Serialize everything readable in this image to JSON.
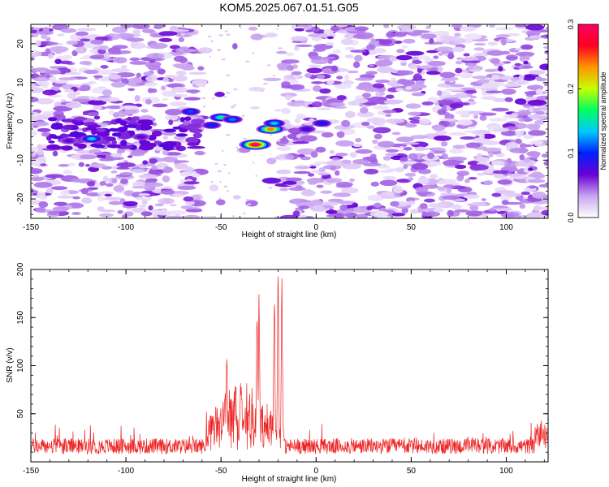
{
  "title": "KOM5.2025.067.01.51.G05",
  "chart_data": [
    {
      "type": "heatmap",
      "xlabel": "Height of straight line (km)",
      "ylabel": "Frequency (Hz)",
      "xlim": [
        -150,
        122
      ],
      "ylim": [
        -25,
        25
      ],
      "x_ticks": [
        -150,
        -100,
        -50,
        0,
        50,
        100
      ],
      "x_tick_labels": [
        "-150",
        "-100",
        "-50",
        "0",
        "50",
        "100"
      ],
      "y_ticks": [
        20,
        10,
        0,
        -10,
        -20
      ],
      "y_tick_labels": [
        "20",
        "10",
        "0",
        "-10",
        "-20"
      ],
      "colorbar": {
        "label": "Normalized spectral amplitude",
        "range": [
          0.0,
          0.3
        ],
        "ticks": [
          0.0,
          0.1,
          0.2,
          0.3
        ],
        "tick_labels": [
          "0.0",
          "0.1",
          "0.2",
          "0.3"
        ],
        "colormap": [
          "#ffffff",
          "#c9a4f0",
          "#6a00d4",
          "#0020ff",
          "#00c8ff",
          "#00ff60",
          "#c8ff00",
          "#ff9600",
          "#ff0020",
          "#ff0060"
        ]
      },
      "gap_x_range": [
        -60,
        -18
      ],
      "hotspots": [
        {
          "x": -118,
          "y": -4.5,
          "value": 0.14
        },
        {
          "x": -66,
          "y": 2.5,
          "value": 0.11
        },
        {
          "x": -50,
          "y": 1.0,
          "value": 0.16
        },
        {
          "x": -55,
          "y": -1.0,
          "value": 0.1
        },
        {
          "x": -44,
          "y": 0.5,
          "value": 0.12
        },
        {
          "x": -32,
          "y": -6.0,
          "value": 0.3
        },
        {
          "x": -24,
          "y": -2.0,
          "value": 0.24
        },
        {
          "x": -22,
          "y": -0.5,
          "value": 0.14
        },
        {
          "x": 3,
          "y": -0.5,
          "value": 0.1
        },
        {
          "x": -5,
          "y": -2.0,
          "value": 0.08
        },
        {
          "x": -130,
          "y": -5.0,
          "value": 0.07
        },
        {
          "x": -92,
          "y": -4.0,
          "value": 0.07
        }
      ]
    },
    {
      "type": "line",
      "xlabel": "Height of straight line (km)",
      "ylabel": "SNR (v/v)",
      "xlim": [
        -150,
        122
      ],
      "ylim": [
        0,
        200
      ],
      "x_ticks": [
        -150,
        -100,
        -50,
        0,
        50,
        100
      ],
      "x_tick_labels": [
        "-150",
        "-100",
        "-50",
        "0",
        "50",
        "100"
      ],
      "y_ticks": [
        50,
        100,
        150,
        200
      ],
      "y_tick_labels": [
        "50",
        "100",
        "150",
        "200"
      ],
      "color": "#ee2222",
      "baseline_snr": 18,
      "peaks": [
        {
          "x": -47,
          "y": 130
        },
        {
          "x": -48,
          "y": 78
        },
        {
          "x": -40,
          "y": 62
        },
        {
          "x": -31,
          "y": 182
        },
        {
          "x": -30,
          "y": 178
        },
        {
          "x": -22,
          "y": 200
        },
        {
          "x": -20,
          "y": 200
        },
        {
          "x": -18,
          "y": 193
        }
      ]
    }
  ]
}
